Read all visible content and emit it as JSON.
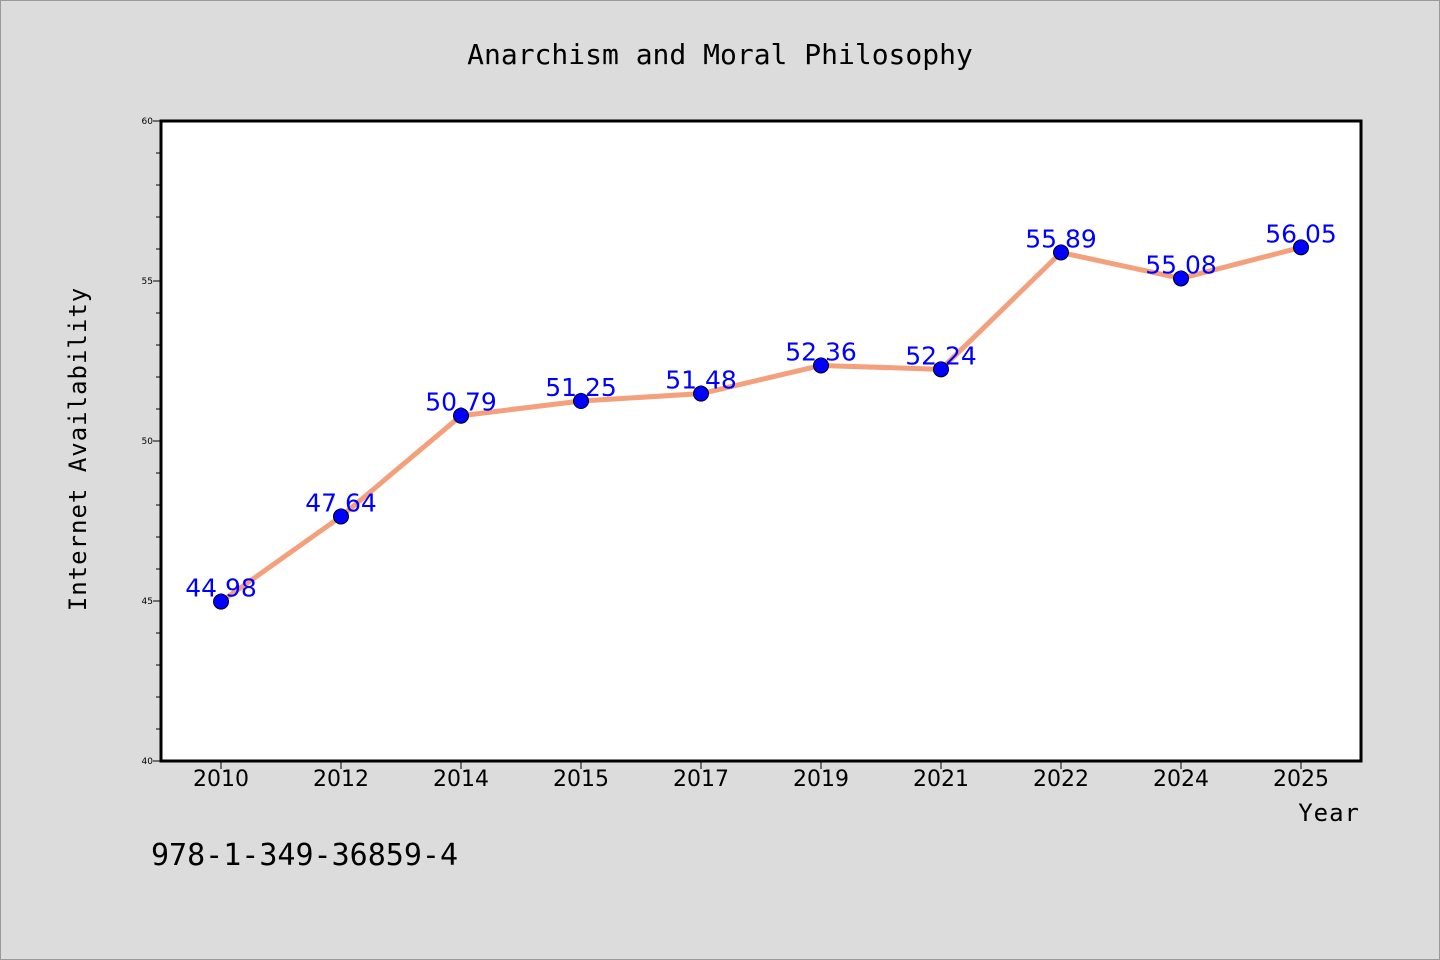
{
  "chart_data": {
    "type": "line",
    "title": "Anarchism and Moral Philosophy",
    "xlabel": "Year",
    "ylabel": "Internet Availability",
    "categories": [
      "2010",
      "2012",
      "2014",
      "2015",
      "2017",
      "2019",
      "2021",
      "2022",
      "2024",
      "2025"
    ],
    "series": [
      {
        "values": [
          44.98,
          47.64,
          50.79,
          51.25,
          51.48,
          52.36,
          52.24,
          55.89,
          55.08,
          56.05
        ],
        "line_color": "#f4a07d",
        "marker_color": "#0000ff"
      }
    ],
    "data_labels": [
      "44.98",
      "47.64",
      "50.79",
      "51.25",
      "51.48",
      "52.36",
      "52.24",
      "55.89",
      "55.08",
      "56.05"
    ],
    "ylim": [
      40,
      60
    ],
    "y_ticks": [
      "40",
      "45",
      "50",
      "55",
      "60"
    ],
    "grid": false,
    "legend": "none",
    "colors": {
      "background": "#dcdcdc",
      "plot_area": "#ffffff",
      "data_label": "#0000ff"
    }
  },
  "footer": {
    "isbn": "978-1-349-36859-4"
  }
}
